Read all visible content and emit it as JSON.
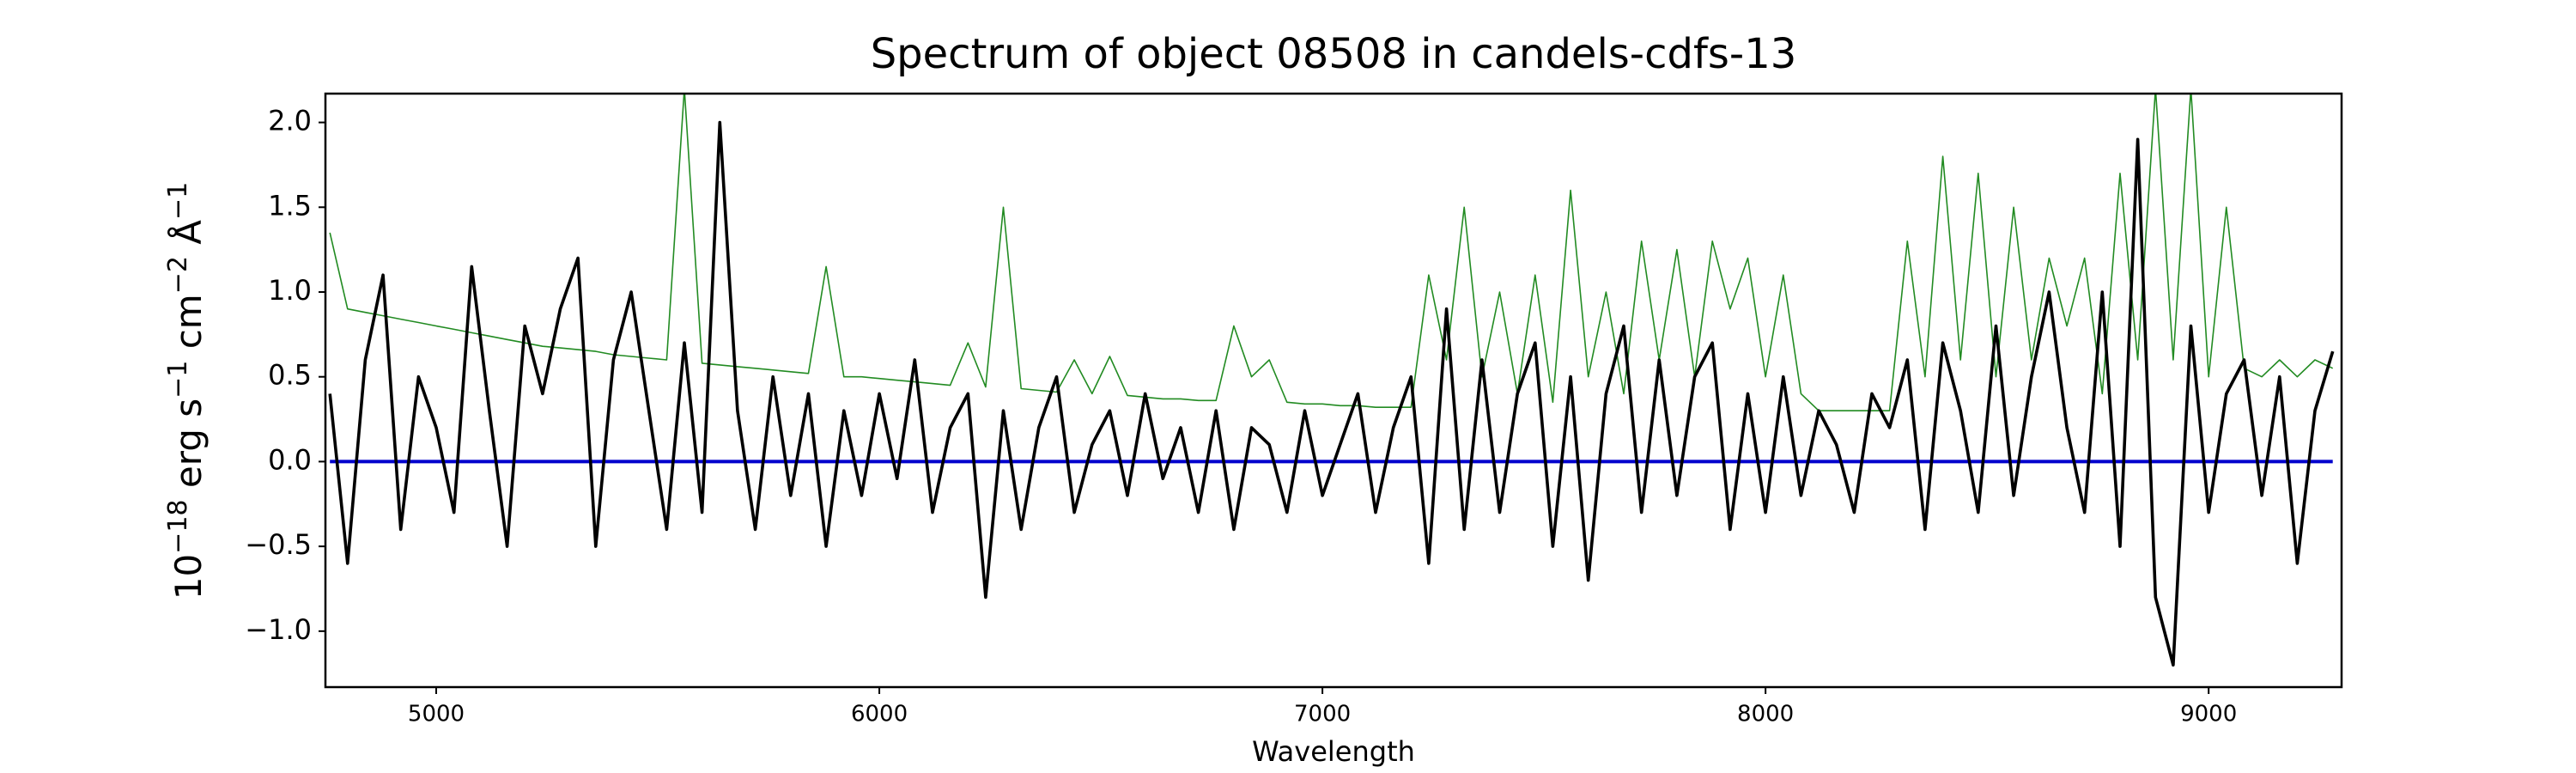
{
  "chart_data": {
    "type": "line",
    "title": "Spectrum of object 08508 in candels-cdfs-13",
    "xlabel": "Wavelength",
    "ylabel_parts": [
      "10",
      "−18",
      " erg s",
      "−1",
      " cm",
      "−2",
      " Å",
      "−1"
    ],
    "xlim": [
      4750,
      9300
    ],
    "ylim": [
      -1.33,
      2.17
    ],
    "xticks": [
      5000,
      6000,
      7000,
      8000,
      9000
    ],
    "yticks": [
      {
        "value": -1,
        "label": "−1.0"
      },
      {
        "value": -0.5,
        "label": "−0.5"
      },
      {
        "value": 0,
        "label": "0.0"
      },
      {
        "value": 0.5,
        "label": "0.5"
      },
      {
        "value": 1,
        "label": "1.0"
      },
      {
        "value": 1.5,
        "label": "1.5"
      },
      {
        "value": 2,
        "label": "2.0"
      }
    ],
    "x": [
      4760,
      4800,
      4840,
      4880,
      4920,
      4960,
      5000,
      5040,
      5080,
      5120,
      5160,
      5200,
      5240,
      5280,
      5320,
      5360,
      5400,
      5440,
      5480,
      5520,
      5560,
      5600,
      5640,
      5680,
      5720,
      5760,
      5800,
      5840,
      5880,
      5920,
      5960,
      6000,
      6040,
      6080,
      6120,
      6160,
      6200,
      6240,
      6280,
      6320,
      6360,
      6400,
      6440,
      6480,
      6520,
      6560,
      6600,
      6640,
      6680,
      6720,
      6760,
      6800,
      6840,
      6880,
      6920,
      6960,
      7000,
      7040,
      7080,
      7120,
      7160,
      7200,
      7240,
      7280,
      7320,
      7360,
      7400,
      7440,
      7480,
      7520,
      7560,
      7600,
      7640,
      7680,
      7720,
      7760,
      7800,
      7840,
      7880,
      7920,
      7960,
      8000,
      8040,
      8080,
      8120,
      8160,
      8200,
      8240,
      8280,
      8320,
      8360,
      8400,
      8440,
      8480,
      8520,
      8560,
      8600,
      8640,
      8680,
      8720,
      8760,
      8800,
      8840,
      8880,
      8920,
      8960,
      9000,
      9040,
      9080,
      9120,
      9160,
      9200,
      9240,
      9280
    ],
    "series": [
      {
        "color": "#228b22",
        "values": [
          1.35,
          0.9,
          0.88,
          0.86,
          0.84,
          0.82,
          0.8,
          0.78,
          0.76,
          0.74,
          0.72,
          0.7,
          0.68,
          0.67,
          0.66,
          0.65,
          0.63,
          0.62,
          0.61,
          0.6,
          2.2,
          0.58,
          0.57,
          0.56,
          0.55,
          0.54,
          0.53,
          0.52,
          1.15,
          0.5,
          0.5,
          0.49,
          0.48,
          0.47,
          0.46,
          0.45,
          0.7,
          0.44,
          1.5,
          0.43,
          0.42,
          0.41,
          0.6,
          0.4,
          0.62,
          0.39,
          0.38,
          0.37,
          0.37,
          0.36,
          0.36,
          0.8,
          0.5,
          0.6,
          0.35,
          0.34,
          0.34,
          0.33,
          0.33,
          0.32,
          0.32,
          0.32,
          1.1,
          0.6,
          1.5,
          0.5,
          1.0,
          0.4,
          1.1,
          0.35,
          1.6,
          0.5,
          1.0,
          0.4,
          1.3,
          0.6,
          1.25,
          0.5,
          1.3,
          0.9,
          1.2,
          0.5,
          1.1,
          0.4,
          0.3,
          0.3,
          0.3,
          0.3,
          0.3,
          1.3,
          0.5,
          1.8,
          0.6,
          1.7,
          0.5,
          1.5,
          0.6,
          1.2,
          0.8,
          1.2,
          0.4,
          1.7,
          0.6,
          2.2,
          0.6,
          2.2,
          0.5,
          1.5,
          0.55,
          0.5,
          0.6,
          0.5,
          0.6,
          0.55
        ]
      },
      {
        "color": "#0000cd",
        "values": [
          0,
          0,
          0,
          0,
          0,
          0,
          0,
          0,
          0,
          0,
          0,
          0,
          0,
          0,
          0,
          0,
          0,
          0,
          0,
          0,
          0,
          0,
          0,
          0,
          0,
          0,
          0,
          0,
          0,
          0,
          0,
          0,
          0,
          0,
          0,
          0,
          0,
          0,
          0,
          0,
          0,
          0,
          0,
          0,
          0,
          0,
          0,
          0,
          0,
          0,
          0,
          0,
          0,
          0,
          0,
          0,
          0,
          0,
          0,
          0,
          0,
          0,
          0,
          0,
          0,
          0,
          0,
          0,
          0,
          0,
          0,
          0,
          0,
          0,
          0,
          0,
          0,
          0,
          0,
          0,
          0,
          0,
          0,
          0,
          0,
          0,
          0,
          0,
          0,
          0,
          0,
          0,
          0,
          0,
          0,
          0,
          0,
          0,
          0,
          0,
          0,
          0,
          0,
          0,
          0,
          0,
          0,
          0,
          0,
          0,
          0,
          0,
          0,
          0
        ]
      },
      {
        "color": "#000000",
        "values": [
          0.4,
          -0.6,
          0.6,
          1.1,
          -0.4,
          0.5,
          0.2,
          -0.3,
          1.15,
          0.3,
          -0.5,
          0.8,
          0.4,
          0.9,
          1.2,
          -0.5,
          0.6,
          1.0,
          0.3,
          -0.4,
          0.7,
          -0.3,
          2.0,
          0.3,
          -0.4,
          0.5,
          -0.2,
          0.4,
          -0.5,
          0.3,
          -0.2,
          0.4,
          -0.1,
          0.6,
          -0.3,
          0.2,
          0.4,
          -0.8,
          0.3,
          -0.4,
          0.2,
          0.5,
          -0.3,
          0.1,
          0.3,
          -0.2,
          0.4,
          -0.1,
          0.2,
          -0.3,
          0.3,
          -0.4,
          0.2,
          0.1,
          -0.3,
          0.3,
          -0.2,
          0.1,
          0.4,
          -0.3,
          0.2,
          0.5,
          -0.6,
          0.9,
          -0.4,
          0.6,
          -0.3,
          0.4,
          0.7,
          -0.5,
          0.5,
          -0.7,
          0.4,
          0.8,
          -0.3,
          0.6,
          -0.2,
          0.5,
          0.7,
          -0.4,
          0.4,
          -0.3,
          0.5,
          -0.2,
          0.3,
          0.1,
          -0.3,
          0.4,
          0.2,
          0.6,
          -0.4,
          0.7,
          0.3,
          -0.3,
          0.8,
          -0.2,
          0.5,
          1.0,
          0.2,
          -0.3,
          1.0,
          -0.5,
          1.9,
          -0.8,
          -1.2,
          0.8,
          -0.3,
          0.4,
          0.6,
          -0.2,
          0.5,
          -0.6,
          0.3,
          0.65
        ]
      }
    ]
  }
}
